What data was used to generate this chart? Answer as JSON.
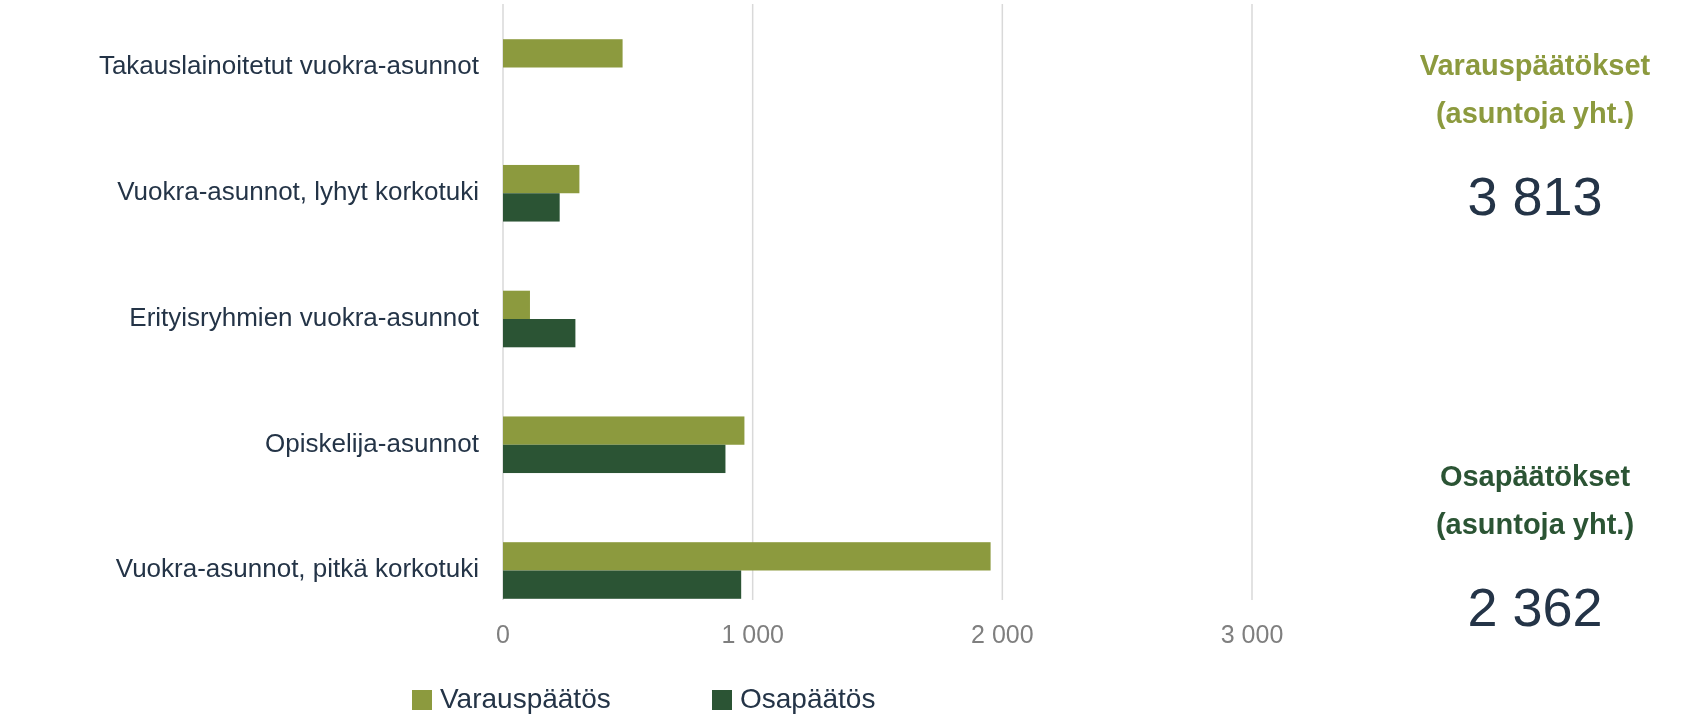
{
  "chart_data": {
    "type": "bar",
    "orientation": "horizontal",
    "categories": [
      "Takauslainoitetut vuokra-asunnot",
      "Vuokra-asunnot, lyhyt korkotuki",
      "Erityisryhmien vuokra-asunnot",
      "Opiskelija-asunnot",
      "Vuokra-asunnot, pitkä korkotuki"
    ],
    "series": [
      {
        "name": "Varauspäätös",
        "color": "#8c9a3e",
        "values": [
          479,
          306,
          108,
          967,
          1953
        ]
      },
      {
        "name": "Osapäätös",
        "color": "#2b5434",
        "values": [
          null,
          227,
          290,
          891,
          954
        ]
      }
    ],
    "xlim": [
      0,
      3000
    ],
    "xticks": [
      0,
      {
        "value": 1000,
        "label": "1 000"
      },
      {
        "value": 2000,
        "label": "2 000"
      },
      {
        "value": 3000,
        "label": "3 000"
      }
    ],
    "grid": "x",
    "legend": "bottom",
    "annotations": [
      "Varauspäätökset\n(asuntoja yht.)",
      "3 813",
      "Osapäätökset\n(asuntoja yht.)",
      "2 362"
    ]
  }
}
